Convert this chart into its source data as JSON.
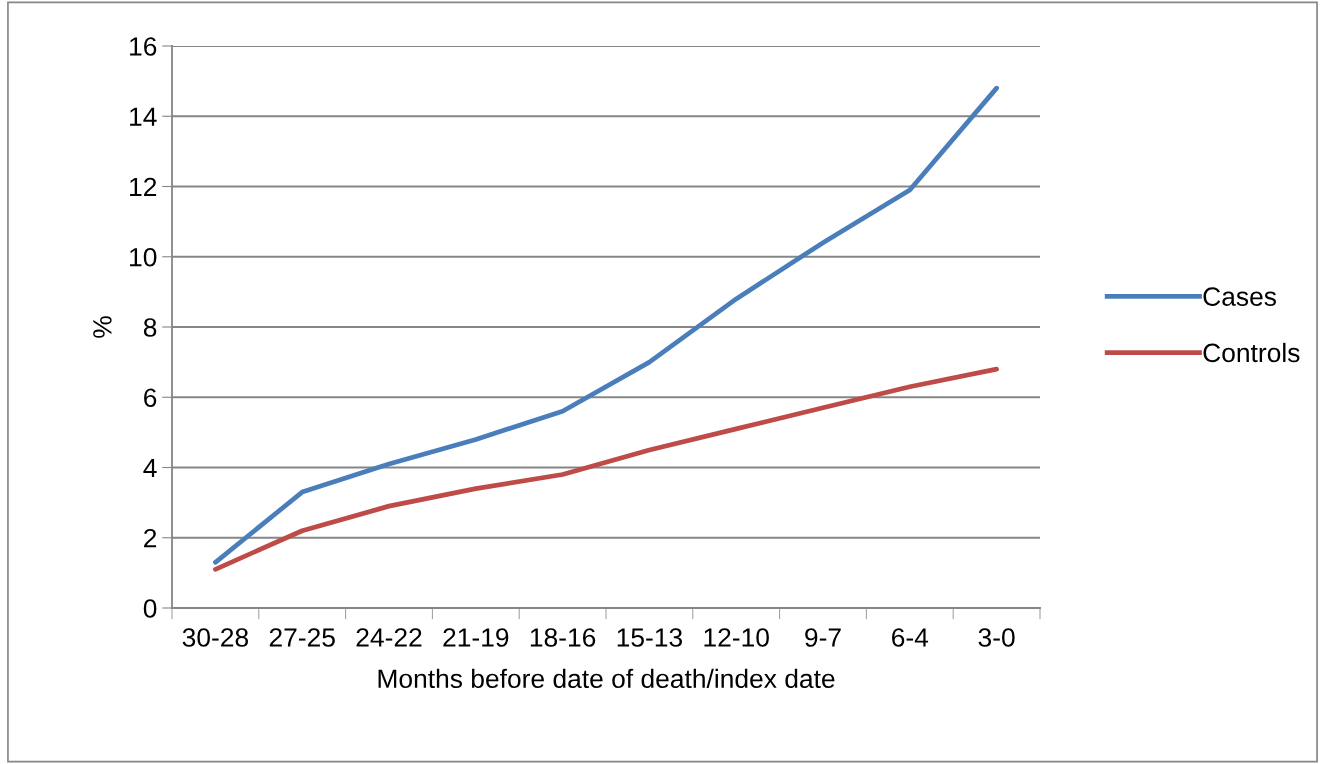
{
  "chart_data": {
    "type": "line",
    "categories": [
      "30-28",
      "27-25",
      "24-22",
      "21-19",
      "18-16",
      "15-13",
      "12-10",
      "9-7",
      "6-4",
      "3-0"
    ],
    "series": [
      {
        "name": "Cases",
        "color": "#4a7ebb",
        "values": [
          1.3,
          3.3,
          4.1,
          4.8,
          5.6,
          7.0,
          8.8,
          10.4,
          11.9,
          14.8
        ]
      },
      {
        "name": "Controls",
        "color": "#be4b48",
        "values": [
          1.1,
          2.2,
          2.9,
          3.4,
          3.8,
          4.5,
          5.1,
          5.7,
          6.3,
          6.8
        ]
      }
    ],
    "xlabel": "Months before date of death/index date",
    "ylabel": "%",
    "ylim": [
      0,
      16
    ],
    "yticks": [
      0,
      2,
      4,
      6,
      8,
      10,
      12,
      14,
      16
    ],
    "grid": "y",
    "legend": "right",
    "marker": "none",
    "line_style": "solid"
  }
}
